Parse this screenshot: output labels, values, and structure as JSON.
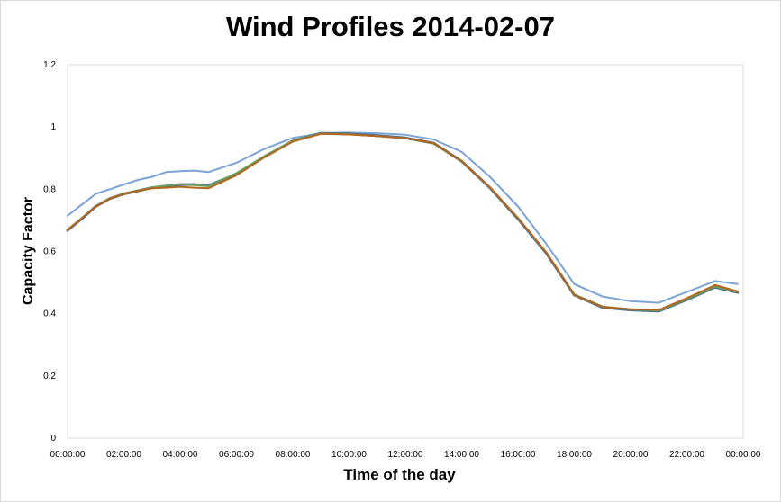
{
  "chart_data": {
    "type": "line",
    "title": "Wind Profiles 2014-02-07",
    "xlabel": "Time of the day",
    "ylabel": "Capacity Factor",
    "ylim": [
      0,
      1.2
    ],
    "yticks": [
      "0",
      "0.2",
      "0.4",
      "0.6",
      "0.8",
      "1",
      "1.2"
    ],
    "xticks": [
      "00:00:00",
      "02:00:00",
      "04:00:00",
      "06:00:00",
      "08:00:00",
      "10:00:00",
      "12:00:00",
      "14:00:00",
      "16:00:00",
      "18:00:00",
      "20:00:00",
      "22:00:00",
      "00:00:00"
    ],
    "x_hours": [
      0,
      0.5,
      1,
      1.5,
      2,
      2.5,
      3,
      3.5,
      4,
      4.5,
      5,
      6,
      7,
      8,
      9,
      10,
      11,
      12,
      13,
      14,
      15,
      16,
      17,
      18,
      19,
      20,
      21,
      22,
      23,
      23.8
    ],
    "grid": false,
    "legend": "none",
    "series": [
      {
        "color": "#7ba3d6",
        "width": 2,
        "values": [
          0.715,
          0.75,
          0.785,
          0.8,
          0.815,
          0.83,
          0.84,
          0.855,
          0.858,
          0.86,
          0.855,
          0.885,
          0.93,
          0.965,
          0.98,
          0.982,
          0.98,
          0.975,
          0.96,
          0.92,
          0.84,
          0.745,
          0.625,
          0.495,
          0.455,
          0.44,
          0.435,
          0.47,
          0.505,
          0.495
        ]
      },
      {
        "color": "#4f6d8f",
        "width": 3,
        "values": [
          0.668,
          0.705,
          0.745,
          0.77,
          0.785,
          0.795,
          0.805,
          0.81,
          0.815,
          0.815,
          0.812,
          0.848,
          0.905,
          0.955,
          0.98,
          0.978,
          0.972,
          0.965,
          0.948,
          0.89,
          0.805,
          0.705,
          0.595,
          0.46,
          0.42,
          0.412,
          0.408,
          0.445,
          0.485,
          0.468
        ]
      },
      {
        "color": "#6aa15a",
        "width": 2,
        "values": [
          0.67,
          0.707,
          0.746,
          0.771,
          0.786,
          0.796,
          0.806,
          0.812,
          0.816,
          0.813,
          0.81,
          0.852,
          0.907,
          0.956,
          0.979,
          0.977,
          0.971,
          0.964,
          0.947,
          0.889,
          0.806,
          0.707,
          0.597,
          0.462,
          0.423,
          0.414,
          0.41,
          0.447,
          0.487,
          0.47
        ]
      },
      {
        "color": "#b5651d",
        "width": 2,
        "values": [
          0.669,
          0.706,
          0.745,
          0.77,
          0.785,
          0.795,
          0.803,
          0.805,
          0.808,
          0.805,
          0.803,
          0.845,
          0.903,
          0.953,
          0.978,
          0.976,
          0.971,
          0.964,
          0.948,
          0.89,
          0.806,
          0.708,
          0.598,
          0.46,
          0.422,
          0.414,
          0.412,
          0.45,
          0.492,
          0.472
        ]
      }
    ]
  }
}
